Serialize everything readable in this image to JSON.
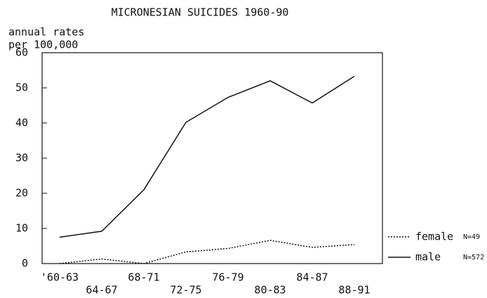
{
  "chart_data": {
    "type": "line",
    "title": "MICRONESIAN SUICIDES 1960-90",
    "y_label": [
      "annual rates",
      "per 100,000"
    ],
    "categories": [
      "'60-63",
      "64-67",
      "68-71",
      "72-75",
      "76-79",
      "80-83",
      "84-87",
      "88-91"
    ],
    "series": [
      {
        "name": "female",
        "note": "N=49",
        "color": "#111111",
        "dash": "dotted",
        "values": [
          0,
          1.3,
          0,
          3.3,
          4.3,
          6.6,
          4.6,
          5.4
        ]
      },
      {
        "name": "male",
        "note": "N=572",
        "color": "#111111",
        "dash": "solid",
        "values": [
          7.5,
          9.2,
          21,
          40.2,
          47.3,
          52,
          45.7,
          53.3
        ]
      }
    ],
    "ylim": [
      0,
      60
    ],
    "yticks": [
      0,
      10,
      20,
      30,
      40,
      50,
      60
    ],
    "grid": false,
    "legend": "right"
  }
}
